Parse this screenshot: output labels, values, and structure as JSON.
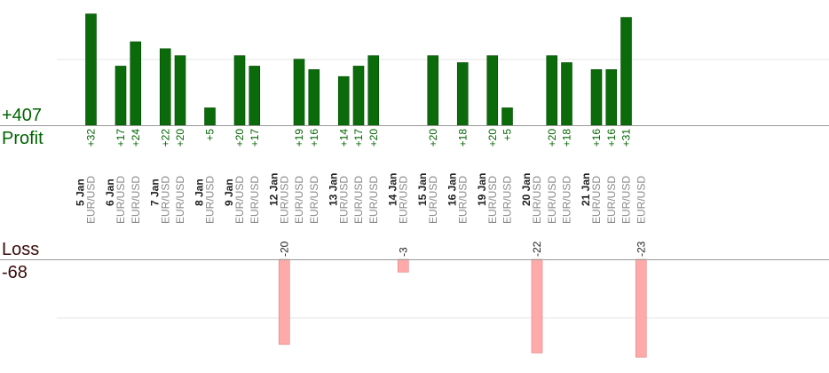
{
  "summary": {
    "profit_total": "+407",
    "profit_label": "Profit",
    "loss_label": "Loss",
    "loss_total": "-68"
  },
  "colors": {
    "profit_bar": "#0b6b0b",
    "profit_bar_edge": "#004d00",
    "profit_text": "#006400",
    "loss_bar": "#ffaaaa",
    "loss_bar_edge": "#e08080",
    "loss_text": "#222222",
    "date_text": "#222222",
    "symbol_text": "#888888",
    "axis": "#999999",
    "grid": "#e6e6e6"
  },
  "chart_data": {
    "type": "bar",
    "profit_ylim": [
      0,
      36
    ],
    "loss_ylim": [
      0,
      24
    ],
    "days": [
      {
        "date": "5 Jan",
        "trades": [
          {
            "symbol": "EUR/USD",
            "result": 32,
            "label": "+32"
          }
        ]
      },
      {
        "date": "6 Jan",
        "trades": [
          {
            "symbol": "EUR/USD",
            "result": 17,
            "label": "+17"
          },
          {
            "symbol": "EUR/USD",
            "result": 24,
            "label": "+24"
          }
        ]
      },
      {
        "date": "7 Jan",
        "trades": [
          {
            "symbol": "EUR/USD",
            "result": 22,
            "label": "+22"
          },
          {
            "symbol": "EUR/USD",
            "result": 20,
            "label": "+20"
          }
        ]
      },
      {
        "date": "8 Jan",
        "trades": [
          {
            "symbol": "EUR/USD",
            "result": 5,
            "label": "+5"
          }
        ]
      },
      {
        "date": "9 Jan",
        "trades": [
          {
            "symbol": "EUR/USD",
            "result": 20,
            "label": "+20"
          },
          {
            "symbol": "EUR/USD",
            "result": 17,
            "label": "+17"
          }
        ]
      },
      {
        "date": "12 Jan",
        "trades": [
          {
            "symbol": "EUR/USD",
            "result": -20,
            "label": "-20"
          },
          {
            "symbol": "EUR/USD",
            "result": 19,
            "label": "+19"
          },
          {
            "symbol": "EUR/USD",
            "result": 16,
            "label": "+16"
          }
        ]
      },
      {
        "date": "13 Jan",
        "trades": [
          {
            "symbol": "EUR/USD",
            "result": 14,
            "label": "+14"
          },
          {
            "symbol": "EUR/USD",
            "result": 17,
            "label": "+17"
          },
          {
            "symbol": "EUR/USD",
            "result": 20,
            "label": "+20"
          }
        ]
      },
      {
        "date": "14 Jan",
        "trades": [
          {
            "symbol": "EUR/USD",
            "result": -3,
            "label": "-3"
          }
        ]
      },
      {
        "date": "15 Jan",
        "trades": [
          {
            "symbol": "EUR/USD",
            "result": 20,
            "label": "+20"
          }
        ]
      },
      {
        "date": "16 Jan",
        "trades": [
          {
            "symbol": "EUR/USD",
            "result": 18,
            "label": "+18"
          }
        ]
      },
      {
        "date": "19 Jan",
        "trades": [
          {
            "symbol": "EUR/USD",
            "result": 20,
            "label": "+20"
          },
          {
            "symbol": "EUR/USD",
            "result": 5,
            "label": "+5"
          }
        ]
      },
      {
        "date": "20 Jan",
        "trades": [
          {
            "symbol": "EUR/USD",
            "result": -22,
            "label": "-22"
          },
          {
            "symbol": "EUR/USD",
            "result": 20,
            "label": "+20"
          },
          {
            "symbol": "EUR/USD",
            "result": 18,
            "label": "+18"
          }
        ]
      },
      {
        "date": "21 Jan",
        "trades": [
          {
            "symbol": "EUR/USD",
            "result": 16,
            "label": "+16"
          },
          {
            "symbol": "EUR/USD",
            "result": 16,
            "label": "+16"
          },
          {
            "symbol": "EUR/USD",
            "result": 31,
            "label": "+31"
          },
          {
            "symbol": "EUR/USD",
            "result": -23,
            "label": "-23"
          }
        ]
      }
    ]
  }
}
